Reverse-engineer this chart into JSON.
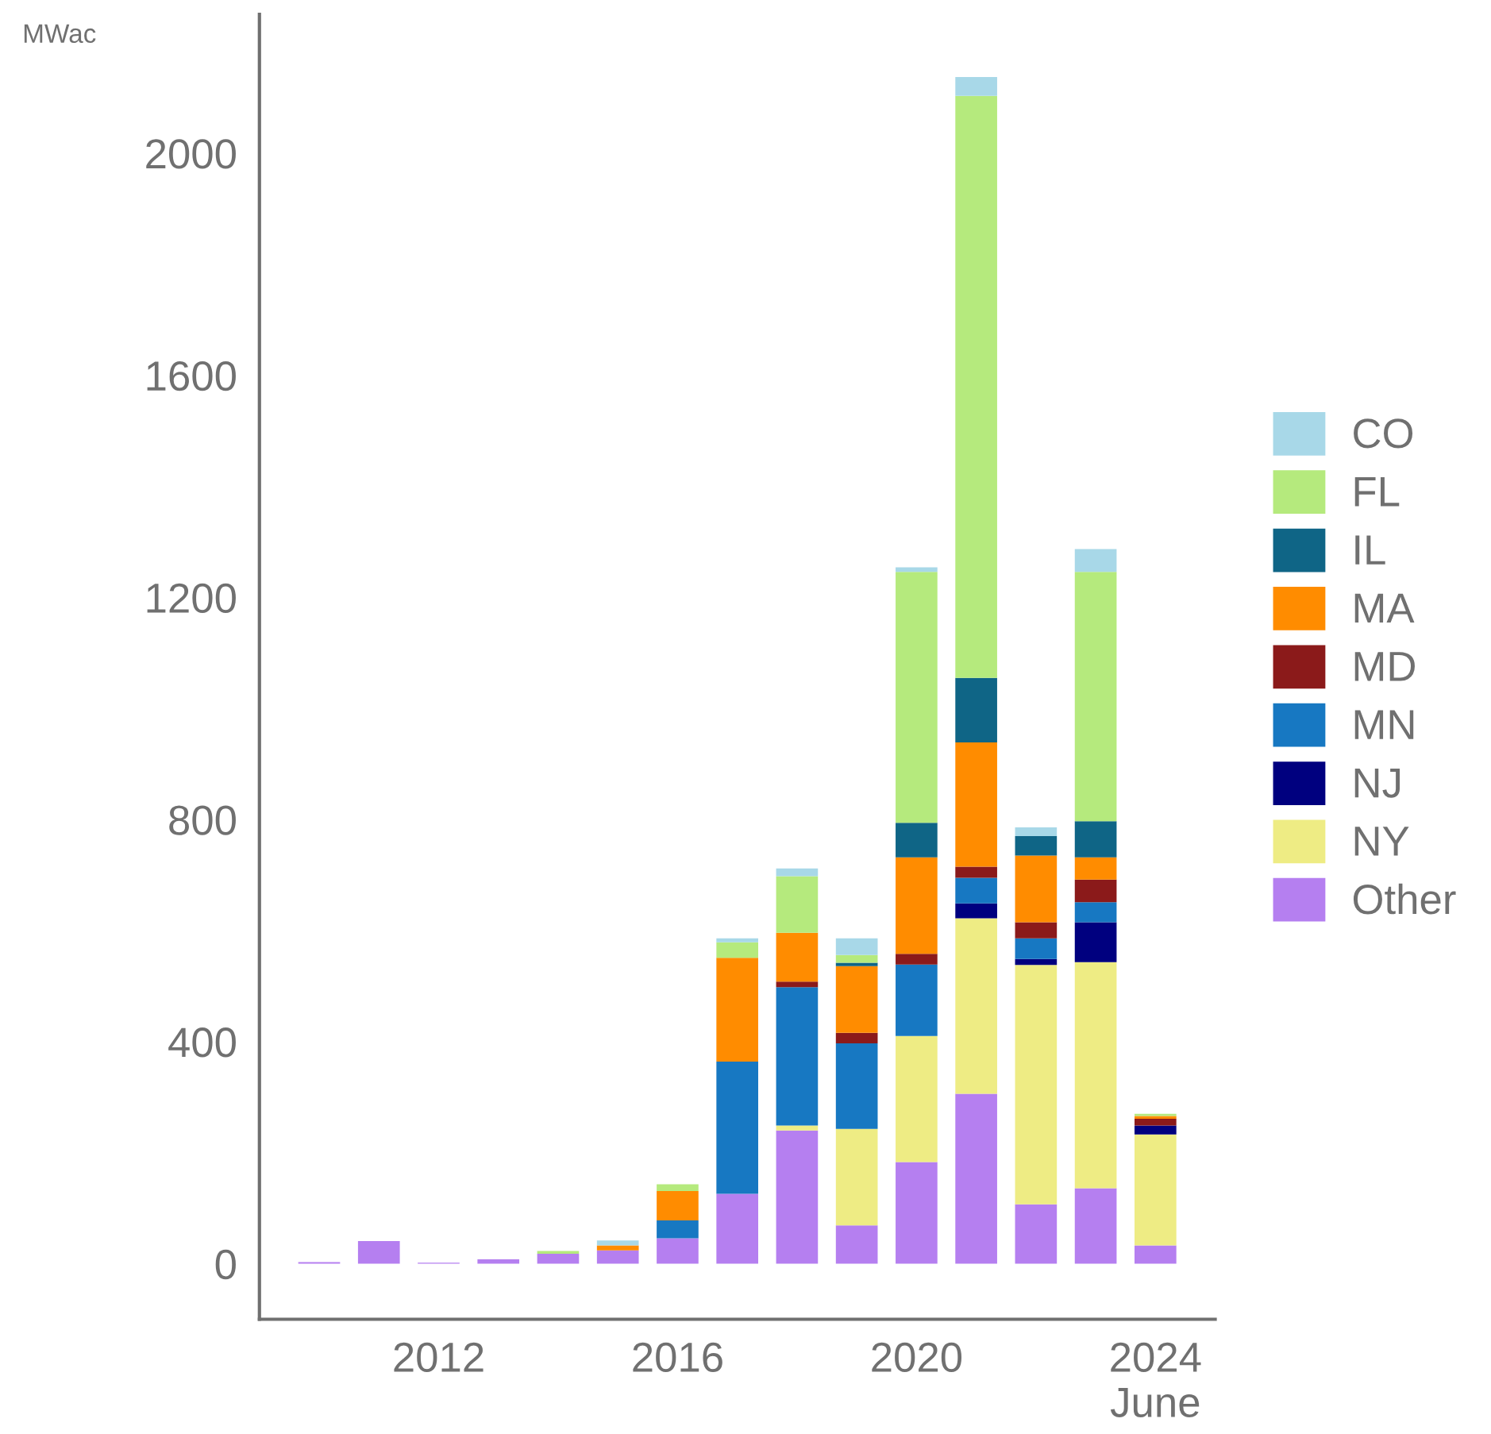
{
  "chart_data": {
    "type": "bar",
    "stacked": true,
    "ylabel": "MWac",
    "x": [
      2010,
      2011,
      2012,
      2013,
      2014,
      2015,
      2016,
      2017,
      2018,
      2019,
      2020,
      2021,
      2022,
      2023,
      2024
    ],
    "xlim": [
      2009,
      2025
    ],
    "xticks": [
      2012,
      2016,
      2020,
      {
        "value": 2024,
        "label": "2024\nJune"
      }
    ],
    "ylim": [
      -100,
      2250
    ],
    "yticks": [
      0,
      400,
      800,
      1200,
      1600,
      2000
    ],
    "grid": false,
    "legend": "right",
    "series": [
      {
        "name": "Other",
        "color": "#b57ff0",
        "values": [
          3,
          41,
          2,
          8,
          18,
          24,
          46,
          126,
          240,
          69,
          183,
          306,
          107,
          136,
          33
        ]
      },
      {
        "name": "NY",
        "color": "#eeec84",
        "values": [
          0,
          0,
          0,
          0,
          0,
          0,
          0,
          0,
          9,
          174,
          227,
          316,
          431,
          407,
          200
        ]
      },
      {
        "name": "NJ",
        "color": "#00007f",
        "values": [
          0,
          0,
          0,
          0,
          0,
          0,
          0,
          0,
          0,
          0,
          0,
          27,
          11,
          72,
          16
        ]
      },
      {
        "name": "MN",
        "color": "#1778c2",
        "values": [
          0,
          0,
          0,
          0,
          0,
          0,
          32,
          238,
          249,
          154,
          129,
          46,
          37,
          36,
          0
        ]
      },
      {
        "name": "MD",
        "color": "#8b1a1a",
        "values": [
          0,
          0,
          0,
          0,
          0,
          0,
          0,
          0,
          10,
          19,
          19,
          20,
          29,
          41,
          12
        ]
      },
      {
        "name": "MA",
        "color": "#ff8c00",
        "values": [
          0,
          0,
          0,
          0,
          0,
          9,
          53,
          187,
          88,
          120,
          174,
          224,
          120,
          40,
          5
        ]
      },
      {
        "name": "IL",
        "color": "#0f6586",
        "values": [
          0,
          0,
          0,
          0,
          0,
          0,
          0,
          0,
          0,
          6,
          62,
          116,
          35,
          65,
          0
        ]
      },
      {
        "name": "FL",
        "color": "#b5ea7d",
        "values": [
          0,
          0,
          0,
          0,
          5,
          0,
          12,
          28,
          102,
          14,
          452,
          1048,
          0,
          449,
          4
        ]
      },
      {
        "name": "CO",
        "color": "#a8d8e8",
        "values": [
          0,
          0,
          0,
          0,
          0,
          9,
          0,
          7,
          14,
          30,
          8,
          34,
          16,
          41,
          0
        ]
      }
    ]
  }
}
